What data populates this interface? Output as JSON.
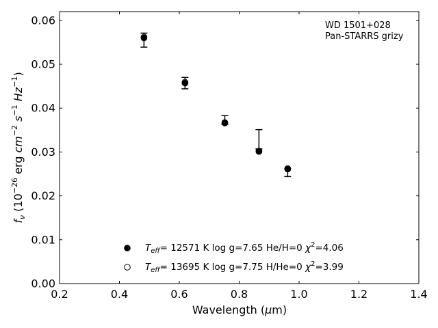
{
  "chart_data": {
    "type": "scatter",
    "xlabel": "Wavelength (μm)",
    "ylabel": "f_ν (10^-26 erg cm^-2 s^-1 Hz^-1)",
    "xlim": [
      0.2,
      1.4
    ],
    "ylim": [
      0.0,
      0.062
    ],
    "x_ticks": [
      0.2,
      0.4,
      0.6,
      0.8,
      1.0,
      1.2,
      1.4
    ],
    "x_tick_labels": [
      "0.2",
      "0.4",
      "0.6",
      "0.8",
      "1.0",
      "1.2",
      "1.4"
    ],
    "y_ticks": [
      0.0,
      0.01,
      0.02,
      0.03,
      0.04,
      0.05,
      0.06
    ],
    "y_tick_labels": [
      "0.00",
      "0.01",
      "0.02",
      "0.03",
      "0.04",
      "0.05",
      "0.06"
    ],
    "grid": false,
    "legend_position": "lower-center",
    "annotation": [
      "WD 1501+028",
      "Pan-STARRS grizy"
    ],
    "observed": {
      "x": [
        0.482,
        0.619,
        0.752,
        0.866,
        0.962
      ],
      "y": [
        0.0555,
        0.0457,
        0.0373,
        0.0329,
        0.0253
      ],
      "yerr": [
        0.0016,
        0.0013,
        0.001,
        0.0022,
        0.0009
      ]
    },
    "series": [
      {
        "name": "T_eff= 12571 K  log g=7.65  He/H=0  χ²=4.06",
        "marker": "filled-circle",
        "x": [
          0.482,
          0.619,
          0.752,
          0.866,
          0.962
        ],
        "y": [
          0.056,
          0.0457,
          0.0366,
          0.0301,
          0.0261
        ]
      },
      {
        "name": "T_eff= 13695 K  log g=7.75  H/He=0  χ²=3.99",
        "marker": "open-circle",
        "x": [
          0.482,
          0.619,
          0.752,
          0.866,
          0.962
        ],
        "y": [
          0.0562,
          0.0459,
          0.0367,
          0.0302,
          0.0262
        ]
      }
    ],
    "legend": {
      "entries": [
        {
          "marker": "filled-circle",
          "teff_value": "= 12571 K  log g=7.65  He/H=0  ",
          "chi_value": "=4.06"
        },
        {
          "marker": "open-circle",
          "teff_value": "= 13695 K  log g=7.75  H/He=0  ",
          "chi_value": "=3.99"
        }
      ]
    }
  }
}
